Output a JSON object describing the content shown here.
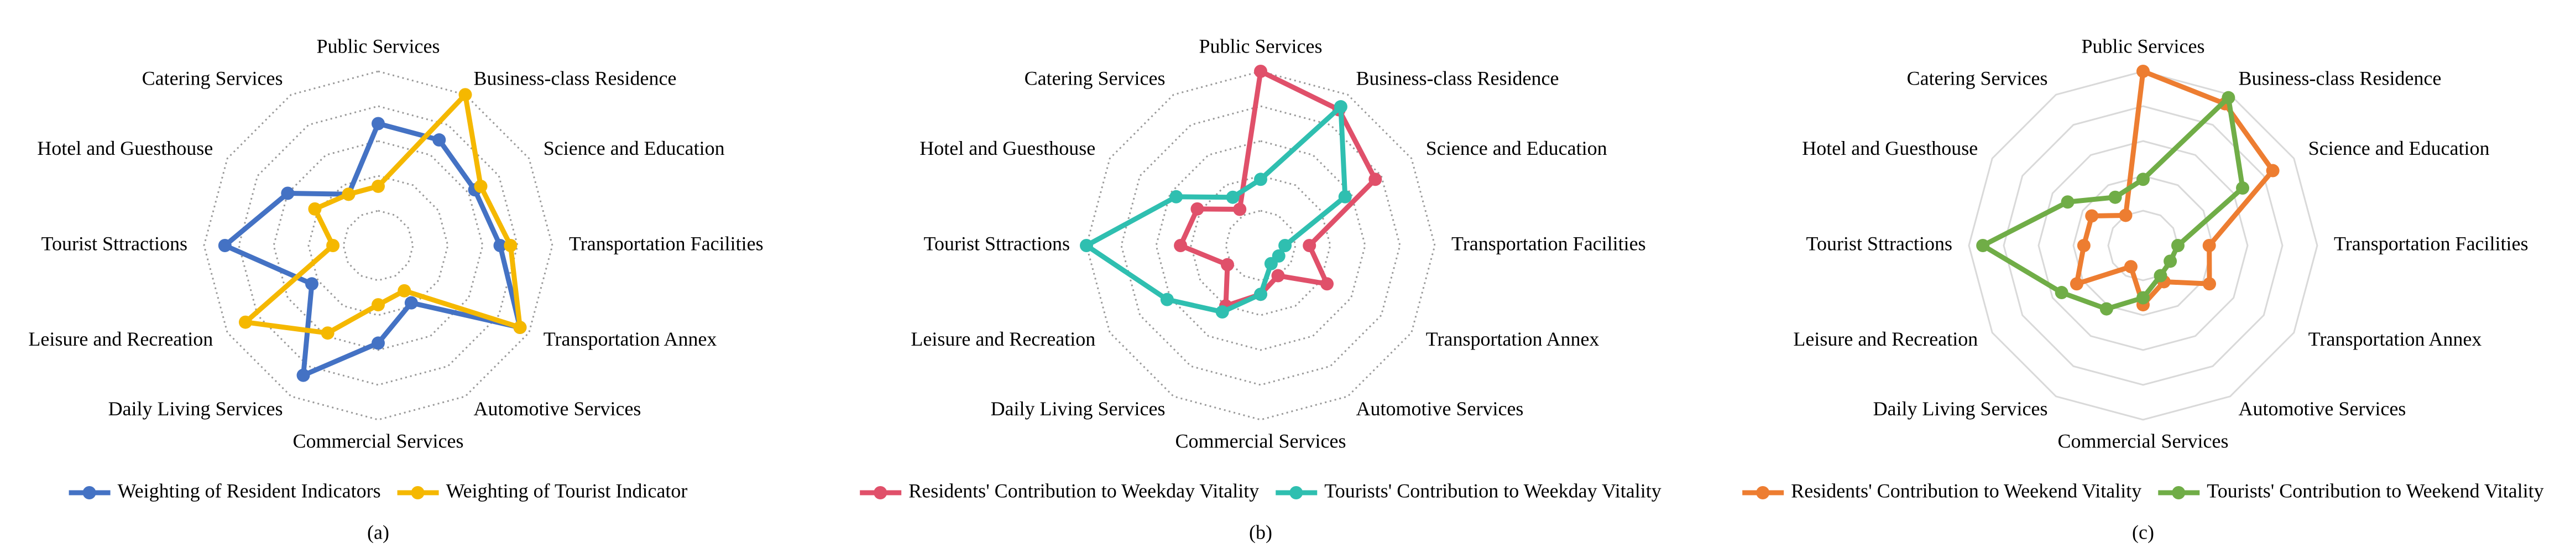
{
  "chart_data": [
    {
      "type": "radar",
      "label": "(a)",
      "categories": [
        "Public Services",
        "Business-class Residence",
        "Science and Education",
        "Transportation Facilities",
        "Transportation Annex",
        "Automotive Services",
        "Commercial Services",
        "Daily Living Services",
        "Leisure and Recreation",
        "Tourist Sttractions",
        "Hotel and Guesthouse",
        "Catering Services"
      ],
      "rlim": [
        0,
        5
      ],
      "rticks": [
        1,
        2,
        3,
        4,
        5
      ],
      "grid": "dotted",
      "series": [
        {
          "name": "Weighting of Resident Indicators",
          "color": "#4472c4",
          "values": [
            3.5,
            3.5,
            3.2,
            3.5,
            4.7,
            1.9,
            2.8,
            4.3,
            2.2,
            4.4,
            3.0,
            1.7
          ]
        },
        {
          "name": "Weighting of Tourist Indicator",
          "color": "#f5b800",
          "values": [
            1.7,
            5.0,
            3.4,
            3.8,
            4.7,
            1.5,
            1.7,
            2.9,
            4.4,
            1.3,
            2.1,
            1.7
          ]
        }
      ]
    },
    {
      "type": "radar",
      "label": "(b)",
      "categories": [
        "Public Services",
        "Business-class Residence",
        "Science and Education",
        "Transportation Facilities",
        "Transportation Annex",
        "Automotive Services",
        "Commercial Services",
        "Daily Living Services",
        "Leisure and Recreation",
        "Tourist Sttractions",
        "Hotel and Guesthouse",
        "Catering Services"
      ],
      "rlim": [
        0,
        5
      ],
      "rticks": [
        1,
        2,
        3,
        4,
        5
      ],
      "grid": "dotted",
      "series": [
        {
          "name": "Residents' Contribution to Weekday Vitality",
          "color": "#e0506a",
          "values": [
            5.0,
            4.5,
            3.8,
            1.4,
            2.2,
            1.0,
            1.4,
            2.0,
            1.1,
            2.3,
            2.1,
            1.2
          ]
        },
        {
          "name": "Tourists' Contribution to Weekday Vitality",
          "color": "#2fbfb0",
          "values": [
            1.9,
            4.6,
            2.8,
            0.7,
            0.6,
            0.6,
            1.4,
            2.2,
            3.1,
            5.0,
            2.8,
            1.6
          ]
        }
      ]
    },
    {
      "type": "radar",
      "label": "(c)",
      "categories": [
        "Public Services",
        "Business-class Residence",
        "Science and Education",
        "Transportation Facilities",
        "Transportation Annex",
        "Automotive Services",
        "Commercial Services",
        "Daily Living Services",
        "Leisure and Recreation",
        "Tourist Sttractions",
        "Hotel and Guesthouse",
        "Catering Services"
      ],
      "rlim": [
        0,
        5
      ],
      "rticks": [
        1,
        2,
        3,
        4,
        5
      ],
      "grid": "solid",
      "series": [
        {
          "name": "Residents' Contribution to Weekend Vitality",
          "color": "#ed7d31",
          "values": [
            5.0,
            4.7,
            4.3,
            1.9,
            2.2,
            1.2,
            1.7,
            0.7,
            2.2,
            1.7,
            1.7,
            1.0
          ]
        },
        {
          "name": "Tourists' Contribution to Weekend Vitality",
          "color": "#70ad47",
          "values": [
            1.9,
            4.9,
            3.3,
            1.0,
            0.9,
            1.0,
            1.5,
            2.1,
            2.7,
            4.6,
            2.5,
            1.6
          ]
        }
      ]
    }
  ]
}
